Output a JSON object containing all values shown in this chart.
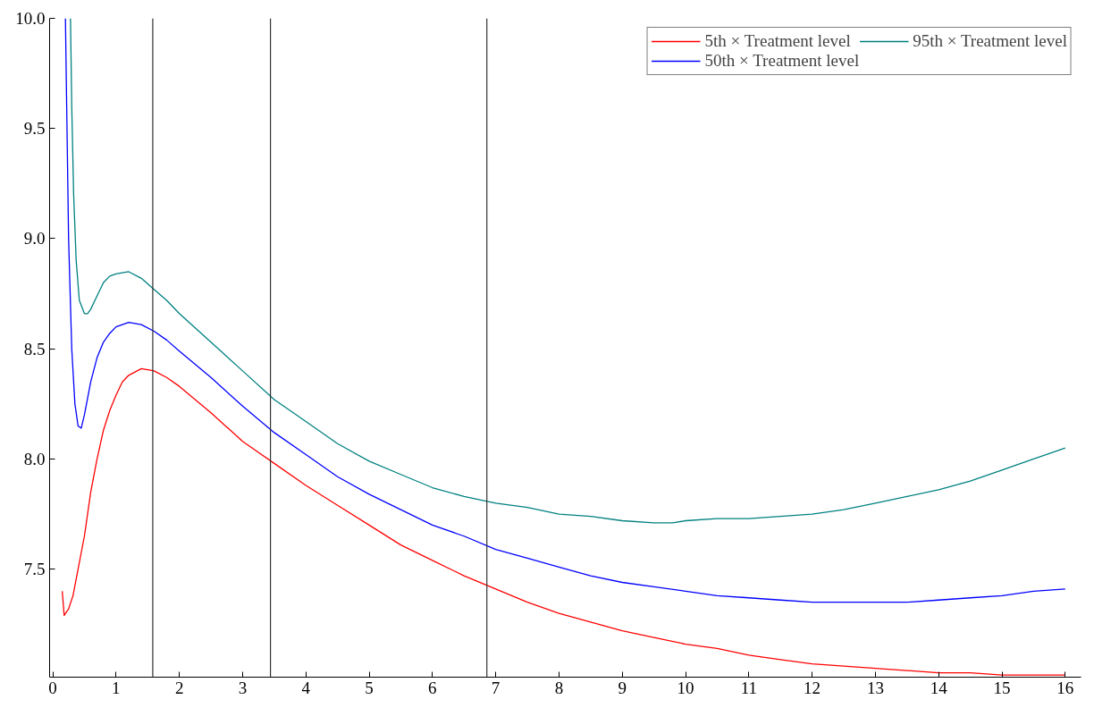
{
  "chart_data": {
    "type": "line",
    "xlim": [
      -0.05,
      16.25
    ],
    "ylim": [
      7.01,
      10.0
    ],
    "xticks": [
      0,
      1,
      2,
      3,
      4,
      5,
      6,
      7,
      8,
      9,
      10,
      11,
      12,
      13,
      14,
      15,
      16
    ],
    "yticks": [
      {
        "value": 7.5,
        "label": "7.5"
      },
      {
        "value": 8.0,
        "label": "8.0"
      },
      {
        "value": 8.5,
        "label": "8.5"
      },
      {
        "value": 9.0,
        "label": "9.0"
      },
      {
        "value": 9.5,
        "label": "9.5"
      },
      {
        "value": 10.0,
        "label": "10.0"
      }
    ],
    "grid": false,
    "legend": "top right",
    "line_style": "solid",
    "marker": "none",
    "ref_lines": [
      {
        "axis": "x",
        "value": 1.58,
        "label": null,
        "color": "#333333"
      },
      {
        "axis": "x",
        "value": 3.44,
        "label": null,
        "color": "#333333"
      },
      {
        "axis": "x",
        "value": 6.86,
        "label": null,
        "color": "#333333"
      }
    ],
    "series": [
      {
        "name": "5th × Treatment level",
        "color": "#ff0000",
        "x": [
          0.15,
          0.18,
          0.25,
          0.32,
          0.4,
          0.5,
          0.6,
          0.7,
          0.8,
          0.9,
          1.0,
          1.1,
          1.2,
          1.4,
          1.6,
          1.8,
          2.0,
          2.5,
          3.0,
          3.5,
          4.0,
          4.5,
          5.0,
          5.5,
          6.0,
          6.5,
          7.0,
          7.5,
          8.0,
          8.5,
          9.0,
          9.5,
          10.0,
          10.5,
          11.0,
          11.5,
          12.0,
          12.5,
          13.0,
          13.5,
          14.0,
          14.5,
          15.0,
          15.5,
          16.0
        ],
        "values": [
          7.4,
          7.29,
          7.32,
          7.38,
          7.5,
          7.65,
          7.85,
          8.0,
          8.13,
          8.22,
          8.29,
          8.35,
          8.38,
          8.41,
          8.4,
          8.37,
          8.33,
          8.21,
          8.08,
          7.98,
          7.88,
          7.79,
          7.7,
          7.61,
          7.54,
          7.47,
          7.41,
          7.35,
          7.3,
          7.26,
          7.22,
          7.19,
          7.16,
          7.14,
          7.11,
          7.09,
          7.07,
          7.06,
          7.05,
          7.04,
          7.03,
          7.03,
          7.02,
          7.02,
          7.02
        ]
      },
      {
        "name": "50th × Treatment level",
        "color": "#0000ff",
        "x": [
          0.2,
          0.22,
          0.25,
          0.3,
          0.35,
          0.4,
          0.45,
          0.5,
          0.6,
          0.7,
          0.8,
          0.9,
          1.0,
          1.2,
          1.4,
          1.6,
          1.8,
          2.0,
          2.5,
          3.0,
          3.5,
          4.0,
          4.5,
          5.0,
          5.5,
          6.0,
          6.5,
          7.0,
          7.5,
          8.0,
          8.5,
          9.0,
          9.5,
          10.0,
          10.5,
          11.0,
          11.5,
          12.0,
          12.5,
          13.0,
          13.5,
          14.0,
          14.5,
          15.0,
          15.5,
          16.0
        ],
        "values": [
          10.0,
          9.6,
          9.0,
          8.5,
          8.25,
          8.15,
          8.14,
          8.2,
          8.35,
          8.46,
          8.53,
          8.57,
          8.6,
          8.62,
          8.61,
          8.58,
          8.54,
          8.49,
          8.37,
          8.24,
          8.12,
          8.02,
          7.92,
          7.84,
          7.77,
          7.7,
          7.65,
          7.59,
          7.55,
          7.51,
          7.47,
          7.44,
          7.42,
          7.4,
          7.38,
          7.37,
          7.36,
          7.35,
          7.35,
          7.35,
          7.35,
          7.36,
          7.37,
          7.38,
          7.4,
          7.41
        ]
      },
      {
        "name": "95th × Treatment level",
        "color": "#008080",
        "x": [
          0.28,
          0.3,
          0.33,
          0.37,
          0.42,
          0.5,
          0.55,
          0.6,
          0.7,
          0.8,
          0.9,
          1.0,
          1.2,
          1.4,
          1.6,
          1.8,
          2.0,
          2.5,
          3.0,
          3.5,
          4.0,
          4.5,
          5.0,
          5.5,
          6.0,
          6.5,
          7.0,
          7.5,
          8.0,
          8.5,
          9.0,
          9.5,
          9.8,
          10.0,
          10.5,
          11.0,
          11.5,
          12.0,
          12.5,
          13.0,
          13.5,
          14.0,
          14.5,
          15.0,
          15.5,
          16.0
        ],
        "values": [
          10.0,
          9.6,
          9.2,
          8.9,
          8.72,
          8.66,
          8.66,
          8.68,
          8.74,
          8.8,
          8.83,
          8.84,
          8.85,
          8.82,
          8.77,
          8.72,
          8.66,
          8.53,
          8.4,
          8.27,
          8.17,
          8.07,
          7.99,
          7.93,
          7.87,
          7.83,
          7.8,
          7.78,
          7.75,
          7.74,
          7.72,
          7.71,
          7.71,
          7.72,
          7.73,
          7.73,
          7.74,
          7.75,
          7.77,
          7.8,
          7.83,
          7.86,
          7.9,
          7.95,
          8.0,
          8.05
        ]
      }
    ]
  }
}
